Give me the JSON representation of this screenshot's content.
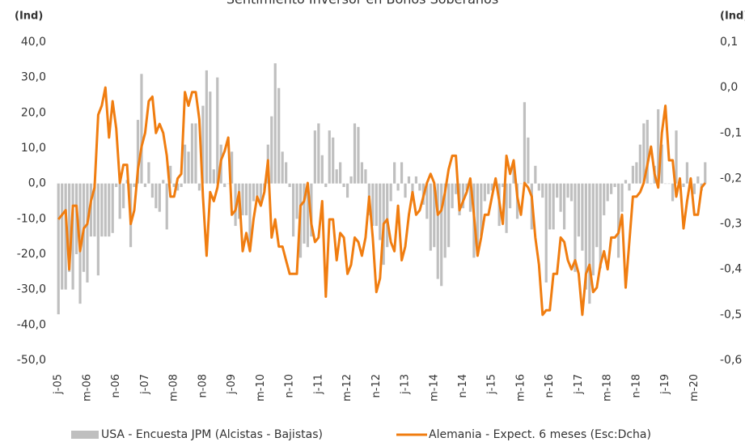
{
  "chart_data": {
    "type": "bar-line",
    "title": "Sentimiento Inversor en Bonos Soberanos",
    "y_label": "(Ind)",
    "y2_label": "(Ind)",
    "categories": [
      "j-05",
      null,
      null,
      null,
      null,
      null,
      null,
      null,
      "m-06",
      null,
      null,
      null,
      null,
      null,
      null,
      null,
      "n-06",
      null,
      null,
      null,
      null,
      null,
      null,
      null,
      "j-07",
      null,
      null,
      null,
      null,
      null,
      null,
      null,
      "m-08",
      null,
      null,
      null,
      null,
      null,
      null,
      null,
      "n-08",
      null,
      null,
      null,
      null,
      null,
      null,
      null,
      "j-09",
      null,
      null,
      null,
      null,
      null,
      null,
      null,
      "m-10",
      null,
      null,
      null,
      null,
      null,
      null,
      null,
      "n-10",
      null,
      null,
      null,
      null,
      null,
      null,
      null,
      "j-11",
      null,
      null,
      null,
      null,
      null,
      null,
      null,
      "m-12",
      null,
      null,
      null,
      null,
      null,
      null,
      null,
      "n-12",
      null,
      null,
      null,
      null,
      null,
      null,
      null,
      "j-13",
      null,
      null,
      null,
      null,
      null,
      null,
      null,
      "m-14",
      null,
      null,
      null,
      null,
      null,
      null,
      null,
      "n-14",
      null,
      null,
      null,
      null,
      null,
      null,
      null,
      "j-15",
      null,
      null,
      null,
      null,
      null,
      null,
      null,
      "m-16",
      null,
      null,
      null,
      null,
      null,
      null,
      null,
      "n-16",
      null,
      null,
      null,
      null,
      null,
      null,
      null,
      "j-17",
      null,
      null,
      null,
      null,
      null,
      null,
      null,
      "m-18",
      null,
      null,
      null,
      null,
      null,
      null,
      null,
      "n-18",
      null,
      null,
      null,
      null,
      null,
      null,
      null,
      "j-19",
      null,
      null,
      null,
      null,
      null,
      null,
      null,
      "m-20",
      null,
      null,
      null
    ],
    "series": [
      {
        "name": "USA - Encuesta JPM (Alcistas - Bajistas)",
        "kind": "bar",
        "color": "#bfbfbf",
        "values": [
          -37,
          -30,
          -30,
          -25,
          -30,
          -20,
          -34,
          -25,
          -28,
          -15,
          -15,
          -26,
          -15,
          -15,
          -15,
          -14,
          -1,
          -10,
          -7,
          1,
          -18,
          -1,
          18,
          31,
          -1,
          6,
          -4,
          -7,
          -8,
          1,
          -13,
          5,
          -1,
          -2,
          -1,
          11,
          9,
          17,
          17,
          -2,
          22,
          32,
          26,
          4,
          30,
          11,
          -1,
          0,
          9,
          -12,
          -10,
          -9,
          -9,
          -19,
          -5,
          -5,
          -6,
          -2,
          11,
          19,
          34,
          27,
          9,
          6,
          -1,
          -15,
          -10,
          -21,
          -17,
          -18,
          -15,
          15,
          17,
          8,
          -1,
          15,
          13,
          4,
          6,
          -1,
          -4,
          2,
          17,
          16,
          6,
          4,
          -9,
          -12,
          -12,
          -16,
          -23,
          -18,
          -5,
          6,
          -2,
          6,
          -4,
          2,
          -3,
          2,
          -2,
          -6,
          -10,
          -19,
          -18,
          -27,
          -29,
          -21,
          -18,
          -7,
          -3,
          -9,
          -7,
          -2,
          -8,
          -21,
          -20,
          -15,
          -5,
          -3,
          -2,
          0,
          -12,
          -1,
          -14,
          -7,
          5,
          -10,
          0,
          23,
          13,
          -13,
          5,
          -2,
          -4,
          -28,
          -13,
          -13,
          -4,
          -8,
          -13,
          -4,
          -5,
          -25,
          -15,
          -19,
          -30,
          -34,
          -26,
          -18,
          -24,
          -9,
          -5,
          -3,
          -1,
          -21,
          -8,
          1,
          -2,
          5,
          6,
          11,
          17,
          18,
          0,
          5,
          21,
          11,
          0,
          0,
          -5,
          15,
          1,
          -1,
          6,
          -1,
          -3,
          2,
          -2,
          6
        ]
      },
      {
        "name": "Alemania - Expect. 6 meses (Esc:Dcha)",
        "kind": "line",
        "axis": "y2",
        "color": "#f07d10",
        "values": [
          -0.29,
          -0.28,
          -0.27,
          -0.4,
          -0.26,
          -0.26,
          -0.36,
          -0.31,
          -0.3,
          -0.25,
          -0.22,
          -0.06,
          -0.04,
          0.0,
          -0.11,
          -0.03,
          -0.09,
          -0.21,
          -0.17,
          -0.17,
          -0.3,
          -0.27,
          -0.18,
          -0.13,
          -0.1,
          -0.03,
          -0.02,
          -0.1,
          -0.08,
          -0.1,
          -0.15,
          -0.24,
          -0.24,
          -0.2,
          -0.19,
          -0.01,
          -0.04,
          -0.01,
          -0.01,
          -0.07,
          -0.24,
          -0.37,
          -0.23,
          -0.25,
          -0.22,
          -0.16,
          -0.14,
          -0.11,
          -0.28,
          -0.27,
          -0.23,
          -0.36,
          -0.32,
          -0.36,
          -0.29,
          -0.24,
          -0.26,
          -0.23,
          -0.16,
          -0.33,
          -0.29,
          -0.35,
          -0.35,
          -0.38,
          -0.41,
          -0.41,
          -0.41,
          -0.26,
          -0.25,
          -0.21,
          -0.3,
          -0.34,
          -0.33,
          -0.25,
          -0.46,
          -0.29,
          -0.29,
          -0.38,
          -0.32,
          -0.33,
          -0.41,
          -0.39,
          -0.33,
          -0.34,
          -0.37,
          -0.33,
          -0.24,
          -0.33,
          -0.45,
          -0.42,
          -0.3,
          -0.29,
          -0.34,
          -0.36,
          -0.26,
          -0.38,
          -0.35,
          -0.28,
          -0.23,
          -0.28,
          -0.27,
          -0.24,
          -0.21,
          -0.19,
          -0.21,
          -0.28,
          -0.27,
          -0.23,
          -0.18,
          -0.15,
          -0.15,
          -0.27,
          -0.25,
          -0.23,
          -0.2,
          -0.28,
          -0.37,
          -0.33,
          -0.28,
          -0.28,
          -0.24,
          -0.2,
          -0.25,
          -0.3,
          -0.15,
          -0.19,
          -0.16,
          -0.24,
          -0.28,
          -0.21,
          -0.22,
          -0.24,
          -0.33,
          -0.39,
          -0.5,
          -0.49,
          -0.49,
          -0.41,
          -0.41,
          -0.33,
          -0.34,
          -0.38,
          -0.4,
          -0.38,
          -0.41,
          -0.5,
          -0.41,
          -0.39,
          -0.45,
          -0.44,
          -0.39,
          -0.36,
          -0.4,
          -0.33,
          -0.33,
          -0.32,
          -0.28,
          -0.44,
          -0.34,
          -0.24,
          -0.24,
          -0.23,
          -0.21,
          -0.17,
          -0.13,
          -0.19,
          -0.22,
          -0.1,
          -0.04,
          -0.16,
          -0.16,
          -0.24,
          -0.2,
          -0.31,
          -0.25,
          -0.2,
          -0.28,
          -0.28,
          -0.22,
          -0.21
        ]
      }
    ],
    "ylim": [
      -50,
      40
    ],
    "yticks": [
      {
        "value": 40,
        "label": "40,0"
      },
      {
        "value": 30,
        "label": "30,0"
      },
      {
        "value": 20,
        "label": "20,0"
      },
      {
        "value": 10,
        "label": "10,0"
      },
      {
        "value": 0,
        "label": "0,0"
      },
      {
        "value": -10,
        "label": "-10,0"
      },
      {
        "value": -20,
        "label": "-20,0"
      },
      {
        "value": -30,
        "label": "-30,0"
      },
      {
        "value": -40,
        "label": "-40,0"
      },
      {
        "value": -50,
        "label": "-50,0"
      }
    ],
    "y2lim": [
      -0.6,
      0.1
    ],
    "y2ticks": [
      {
        "value": 0.1,
        "label": "0,1"
      },
      {
        "value": 0,
        "label": "0,0"
      },
      {
        "value": -0.1,
        "label": "-0,1"
      },
      {
        "value": -0.2,
        "label": "-0,2"
      },
      {
        "value": -0.3,
        "label": "-0,3"
      },
      {
        "value": -0.4,
        "label": "-0,4"
      },
      {
        "value": -0.5,
        "label": "-0,5"
      },
      {
        "value": -0.6,
        "label": "-0,6"
      }
    ]
  }
}
